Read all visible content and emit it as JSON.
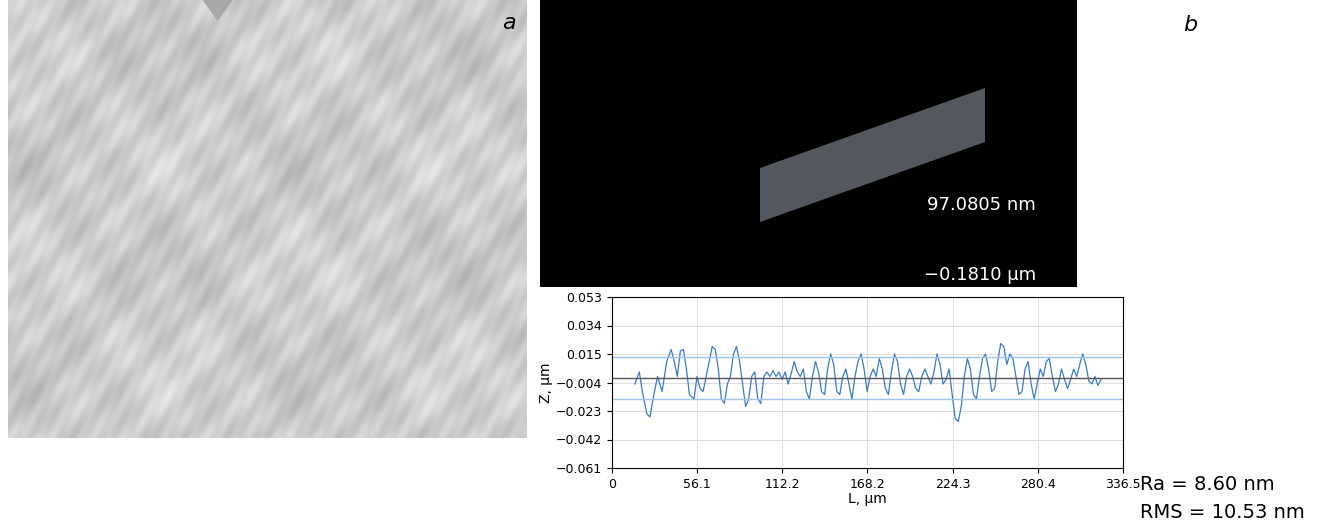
{
  "panel_labels": [
    "a",
    "b"
  ],
  "surface_colorbar": {
    "max_label": "97.0805 nm",
    "min_label": "−0.1810 µm"
  },
  "chart_data": {
    "type": "line",
    "x_label": "L, µm",
    "y_label": "Z, µm",
    "x": [
      15,
      18,
      20,
      23,
      25,
      27,
      30,
      33,
      36,
      39,
      41,
      43,
      45,
      47,
      49,
      51,
      54,
      56,
      58,
      60,
      63,
      66,
      68,
      70,
      72,
      74,
      76,
      78,
      80,
      82,
      84,
      86,
      88,
      90,
      92,
      94,
      96,
      98,
      100,
      102,
      104,
      106,
      108,
      110,
      112,
      114,
      116,
      118,
      120,
      122,
      124,
      126,
      128,
      130,
      132,
      134,
      136,
      138,
      140,
      142,
      144,
      146,
      148,
      150,
      152,
      154,
      156,
      158,
      160,
      162,
      164,
      166,
      168,
      170,
      172,
      174,
      176,
      178,
      180,
      182,
      184,
      186,
      188,
      190,
      192,
      194,
      196,
      198,
      200,
      202,
      204,
      206,
      208,
      210,
      212,
      214,
      216,
      218,
      220,
      222,
      224,
      226,
      228,
      230,
      232,
      234,
      236,
      238,
      240,
      242,
      244,
      246,
      248,
      250,
      252,
      254,
      256,
      258,
      260,
      262,
      264,
      266,
      268,
      270,
      272,
      274,
      276,
      278,
      280,
      282,
      284,
      286,
      288,
      290,
      292,
      294,
      296,
      298,
      300,
      302,
      304,
      306,
      308,
      310,
      312,
      314,
      316,
      318,
      320,
      322
    ],
    "values": [
      -0.005,
      0.003,
      -0.01,
      -0.025,
      -0.027,
      -0.015,
      0.0,
      -0.01,
      0.01,
      0.018,
      0.01,
      0.0,
      0.017,
      0.018,
      0.005,
      -0.012,
      -0.015,
      0.0,
      -0.008,
      -0.01,
      0.005,
      0.02,
      0.018,
      0.005,
      -0.015,
      -0.018,
      -0.005,
      0.0,
      0.015,
      0.02,
      0.01,
      -0.005,
      -0.02,
      -0.015,
      0.0,
      0.003,
      -0.015,
      -0.018,
      0.0,
      0.003,
      0.0,
      0.004,
      0.0,
      0.003,
      -0.002,
      0.003,
      -0.005,
      0.002,
      0.01,
      0.003,
      0.0,
      0.005,
      -0.01,
      -0.015,
      0.0,
      0.01,
      0.003,
      -0.01,
      -0.012,
      0.005,
      0.015,
      0.008,
      -0.01,
      -0.012,
      0.0,
      0.005,
      -0.005,
      -0.015,
      0.0,
      0.01,
      0.015,
      0.005,
      -0.01,
      0.0,
      0.005,
      0.0,
      0.012,
      0.005,
      -0.008,
      -0.012,
      0.003,
      0.015,
      0.01,
      -0.005,
      -0.012,
      0.0,
      0.005,
      0.0,
      -0.008,
      -0.01,
      0.0,
      0.005,
      0.0,
      -0.005,
      0.003,
      0.015,
      0.008,
      -0.005,
      -0.002,
      0.005,
      -0.012,
      -0.028,
      -0.03,
      -0.02,
      0.0,
      0.012,
      0.005,
      -0.012,
      -0.015,
      0.0,
      0.012,
      0.015,
      0.005,
      -0.01,
      -0.008,
      0.01,
      0.022,
      0.02,
      0.008,
      0.015,
      0.012,
      0.0,
      -0.012,
      -0.01,
      0.005,
      0.01,
      -0.005,
      -0.015,
      -0.005,
      0.005,
      0.0,
      0.01,
      0.012,
      0.0,
      -0.01,
      -0.005,
      0.005,
      -0.002,
      -0.008,
      -0.002,
      0.005,
      0.0,
      0.008,
      0.015,
      0.008,
      -0.003,
      -0.005,
      0.0,
      -0.006,
      -0.002
    ],
    "color": "#3a7bc8",
    "mean_line": -0.001,
    "mean_line_color": "#555555",
    "band_lines": [
      0.013,
      -0.015
    ],
    "band_line_color": "#9ec5e8",
    "xlim": [
      0,
      336.5
    ],
    "xticks": [
      0,
      56.1,
      112.2,
      168.2,
      224.3,
      280.4,
      336.5
    ],
    "ylim": [
      -0.061,
      0.053
    ],
    "yticks": [
      {
        "value": -0.061,
        "label": "−0.061"
      },
      {
        "value": -0.042,
        "label": "−0.042"
      },
      {
        "value": -0.023,
        "label": "−0.023"
      },
      {
        "value": -0.004,
        "label": "−0.004"
      },
      0.015,
      0.034,
      0.053
    ],
    "grid": true,
    "annotations": [
      "Ra = 8.60 nm",
      "RMS = 10.53 nm"
    ]
  }
}
